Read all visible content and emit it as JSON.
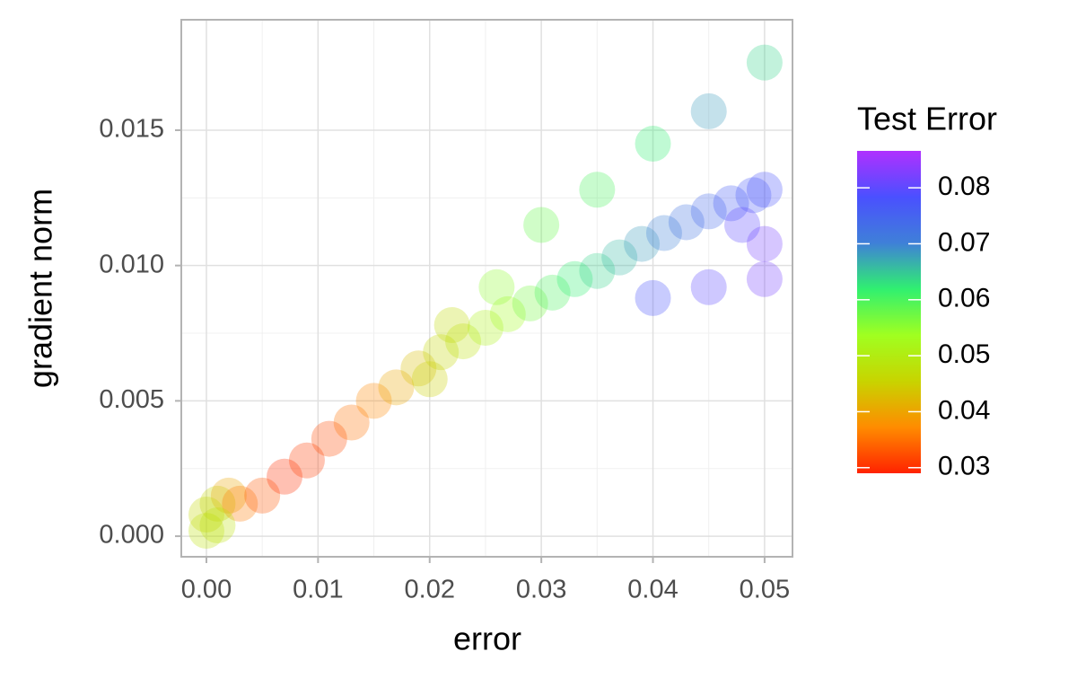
{
  "chart_data": {
    "type": "scatter",
    "x_label": "error",
    "y_label": "gradient norm",
    "xlim": [
      -0.00225,
      0.0525
    ],
    "ylim": [
      -0.00076,
      0.01908
    ],
    "xticks": [
      {
        "value": 0,
        "label": "0.00"
      },
      0.01,
      0.02,
      0.03,
      0.04,
      0.05
    ],
    "yticks": [
      {
        "value": 0,
        "label": "0.000"
      },
      0.005,
      {
        "value": 0.01,
        "label": "0.010"
      },
      0.015
    ],
    "grid": true,
    "point_opacity": 0.3,
    "colorbar": {
      "title": "Test Error",
      "lim": [
        0.029,
        0.0866
      ],
      "ticks": [
        0.03,
        0.04,
        0.05,
        0.06,
        0.07,
        0.08
      ],
      "colors": [
        "#ff2200",
        "#ff8c00",
        "#c8d400",
        "#a0ff20",
        "#30f070",
        "#3f80d8",
        "#4a50ff",
        "#b030ff"
      ]
    },
    "series": [
      {
        "x": [
          0.0,
          0.001,
          0.002,
          0.003,
          0.005,
          0.007,
          0.009,
          0.011,
          0.013,
          0.015,
          0.017,
          0.019,
          0.021,
          0.023,
          0.025,
          0.027,
          0.029,
          0.031,
          0.033,
          0.035,
          0.037,
          0.039,
          0.041,
          0.043,
          0.045,
          0.047,
          0.049,
          0.05,
          0.02,
          0.022,
          0.026,
          0.03,
          0.035,
          0.04,
          0.045,
          0.05,
          0.04,
          0.045,
          0.05,
          0.05,
          0.048,
          0.0,
          0.001
        ],
        "y": [
          0.0002,
          0.0012,
          0.0015,
          0.0012,
          0.0015,
          0.0022,
          0.0028,
          0.0036,
          0.0042,
          0.005,
          0.0055,
          0.0062,
          0.0068,
          0.0072,
          0.0077,
          0.0082,
          0.0086,
          0.009,
          0.0095,
          0.0098,
          0.0103,
          0.0108,
          0.0112,
          0.0116,
          0.012,
          0.0123,
          0.0126,
          0.0128,
          0.0058,
          0.0078,
          0.0092,
          0.0115,
          0.0128,
          0.0145,
          0.0157,
          0.0175,
          0.0088,
          0.0092,
          0.0095,
          0.0108,
          0.0115,
          0.0008,
          0.0004
        ],
        "color_values": [
          0.048,
          0.046,
          0.04,
          0.036,
          0.033,
          0.03,
          0.031,
          0.032,
          0.035,
          0.037,
          0.04,
          0.043,
          0.046,
          0.048,
          0.051,
          0.053,
          0.057,
          0.06,
          0.062,
          0.064,
          0.066,
          0.068,
          0.07,
          0.072,
          0.074,
          0.076,
          0.077,
          0.078,
          0.045,
          0.047,
          0.055,
          0.058,
          0.06,
          0.062,
          0.068,
          0.064,
          0.078,
          0.08,
          0.082,
          0.082,
          0.08,
          0.046,
          0.048
        ]
      }
    ]
  }
}
